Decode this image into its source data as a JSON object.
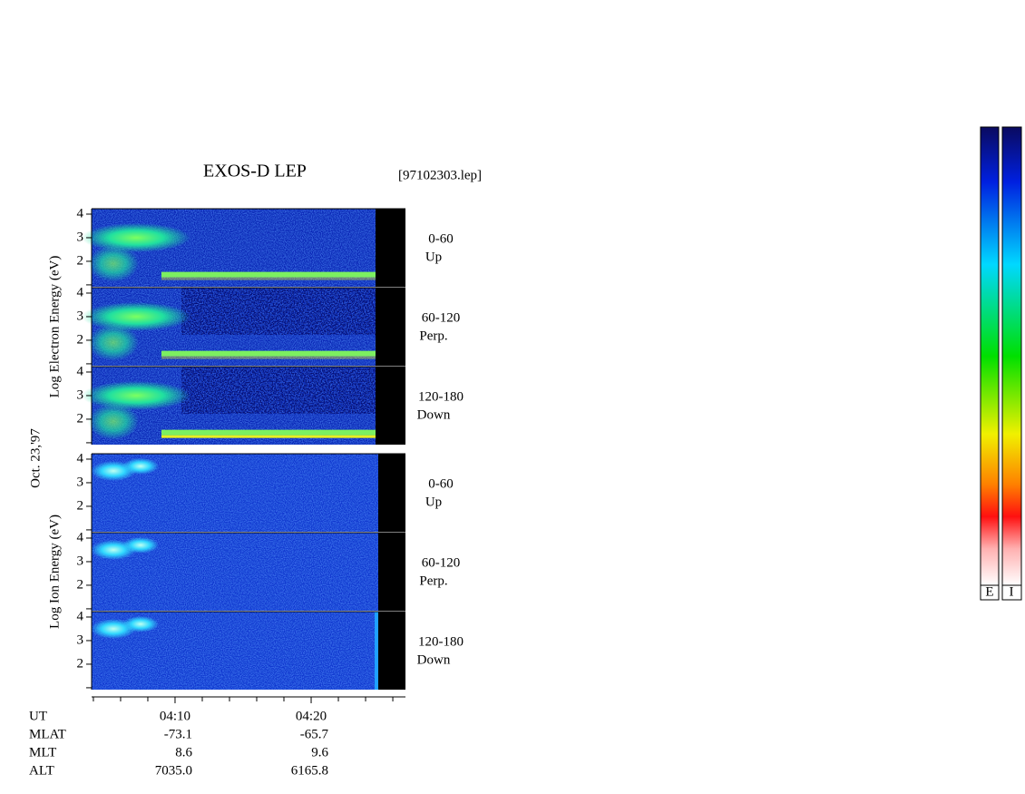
{
  "chart_data": {
    "type": "spectrogram",
    "title": "EXOS-D LEP",
    "file": "[97102303.lep]",
    "date": "Oct. 23,'97",
    "ylim": [
      0.92,
      4.23
    ],
    "yticks": [
      2,
      3,
      4
    ],
    "yticks_minor": [
      1
    ],
    "xlim": [
      243.87,
      266.93
    ],
    "xticks": [
      {
        "value": 250,
        "label": "04:10"
      },
      {
        "value": 260,
        "label": "04:20"
      }
    ],
    "xticks_minor": [
      244,
      246,
      248,
      252,
      254,
      256,
      258,
      262,
      264,
      266
    ],
    "groups": [
      {
        "ylabel": "Log  Electron  Energy (eV)",
        "species": "electron",
        "panels": [
          {
            "angle": "0-60",
            "direction": "Up"
          },
          {
            "angle": "60-120",
            "direction": "Perp."
          },
          {
            "angle": "120-180",
            "direction": "Down"
          }
        ]
      },
      {
        "ylabel": "Log  Ion  Energy (eV)",
        "species": "ion",
        "panels": [
          {
            "angle": "0-60",
            "direction": "Up"
          },
          {
            "angle": "60-120",
            "direction": "Perp."
          },
          {
            "angle": "120-180",
            "direction": "Down"
          }
        ]
      }
    ],
    "orbit_table": [
      {
        "label": "UT"
      },
      {
        "label": "MLAT",
        "values": [
          "-73.1",
          "-65.7"
        ]
      },
      {
        "label": "MLT",
        "values": [
          "8.6",
          "9.6"
        ]
      },
      {
        "label": "ALT",
        "values": [
          "7035.0",
          "6165.8"
        ]
      }
    ],
    "colorbar_labels": [
      "E",
      "I"
    ]
  }
}
